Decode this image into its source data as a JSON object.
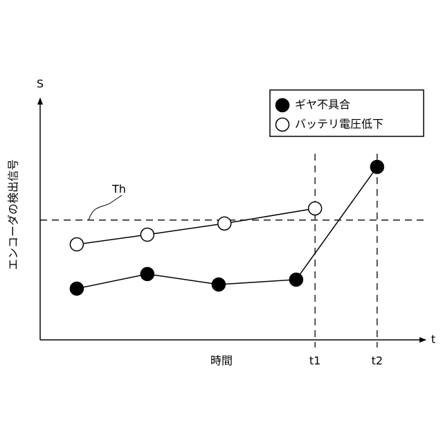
{
  "chart_data": {
    "type": "line",
    "y_symbol": "S",
    "y_label": "エンコーダの検出信号",
    "x_symbol": "t",
    "x_label": "時間",
    "xlim": [
      0,
      10
    ],
    "ylim": [
      0,
      10
    ],
    "xticks": [
      {
        "value": 7.13,
        "label": "t1"
      },
      {
        "value": 8.74,
        "label": "t2"
      }
    ],
    "threshold": {
      "label": "Th",
      "value": 4.93
    },
    "series": [
      {
        "name": "ギヤ不具合",
        "color": "#000000",
        "marker_fill": "#000000",
        "x": [
          0.95,
          2.78,
          4.63,
          6.64,
          8.74
        ],
        "values": [
          2.11,
          2.71,
          2.28,
          2.48,
          7.12
        ]
      },
      {
        "name": "バッテリ電圧低下",
        "color": "#000000",
        "marker_fill": "#ffffff",
        "x": [
          0.95,
          2.78,
          4.78,
          7.13
        ],
        "values": [
          3.93,
          4.33,
          4.79,
          5.41
        ]
      }
    ],
    "legend": "top-right"
  }
}
